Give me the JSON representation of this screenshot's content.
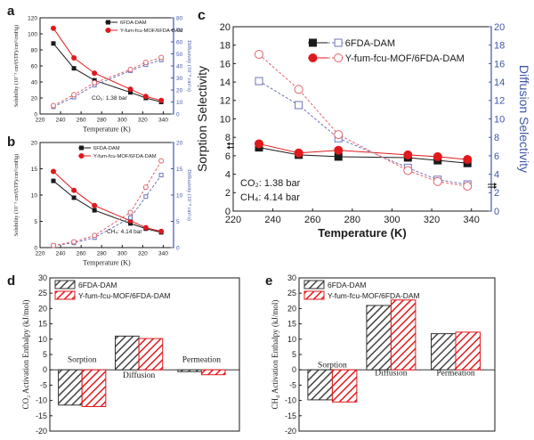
{
  "chart_data": [
    {
      "panel_label": "a",
      "type": "line",
      "xlabel": "Temperature (K)",
      "ylabel": "Solubility (10⁻³ cm³(STP)/cm³/cmHg)",
      "y2label": "Diffusivity (10⁻⁸ cm²/s)",
      "xlim": [
        220,
        350
      ],
      "ylim": [
        0,
        120
      ],
      "y2lim": [
        0,
        80
      ],
      "xticks": [
        220,
        240,
        260,
        280,
        300,
        320,
        340
      ],
      "yticks": [
        0,
        20,
        40,
        60,
        80,
        100,
        120
      ],
      "y2ticks": [
        0,
        10,
        20,
        30,
        40,
        50,
        60,
        70,
        80
      ],
      "annotation": "CO₂: 1.38 bar",
      "series": [
        {
          "name": "6FDA-DAM",
          "axis": "left",
          "x": [
            233,
            253,
            273,
            308,
            323,
            338
          ],
          "values": [
            88,
            57,
            42,
            27,
            20,
            15
          ]
        },
        {
          "name": "Y-fum-fcu-MOF/6FDA-DAM",
          "axis": "left",
          "x": [
            233,
            253,
            273,
            308,
            323,
            338
          ],
          "values": [
            107,
            70,
            51,
            31,
            22,
            17
          ]
        },
        {
          "name": "",
          "axis": "right",
          "x": [
            233,
            253,
            273,
            308,
            323,
            338
          ],
          "values": [
            6,
            14,
            24,
            36,
            41,
            45
          ]
        },
        {
          "name": "",
          "axis": "right",
          "x": [
            233,
            253,
            273,
            308,
            323,
            338
          ],
          "values": [
            7,
            16,
            26,
            37,
            43,
            47
          ]
        }
      ]
    },
    {
      "panel_label": "b",
      "type": "line",
      "xlabel": "Temperature (K)",
      "ylabel": "Solubility (10⁻³ cm³(STP)/cm³/cmHg)",
      "y2label": "Diffusivity (10⁻⁸ cm²/s)",
      "xlim": [
        220,
        350
      ],
      "ylim": [
        0,
        20
      ],
      "y2lim": [
        0,
        20
      ],
      "xticks": [
        220,
        240,
        260,
        280,
        300,
        320,
        340
      ],
      "yticks": [
        0,
        5,
        10,
        15,
        20
      ],
      "y2ticks": [
        0,
        5,
        10,
        15,
        20
      ],
      "annotation": "CH₄: 4.14 bar",
      "series": [
        {
          "name": "6FDA-DAM",
          "axis": "left",
          "x": [
            233,
            253,
            273,
            308,
            323,
            338
          ],
          "values": [
            12.7,
            9.5,
            7.1,
            4.6,
            3.6,
            2.9
          ]
        },
        {
          "name": "Y-fum-fcu-MOF/6FDA-DAM",
          "axis": "left",
          "x": [
            233,
            253,
            273,
            308,
            323,
            338
          ],
          "values": [
            14.5,
            10.9,
            8.0,
            5.1,
            3.8,
            3.1
          ]
        },
        {
          "name": "",
          "axis": "right",
          "x": [
            233,
            253,
            273,
            308,
            323,
            338
          ],
          "values": [
            0.4,
            0.9,
            1.9,
            5.7,
            9.7,
            13.8
          ]
        },
        {
          "name": "",
          "axis": "right",
          "x": [
            233,
            253,
            273,
            308,
            323,
            338
          ],
          "values": [
            0.4,
            1.1,
            2.3,
            6.7,
            11.5,
            16.5
          ]
        }
      ]
    },
    {
      "panel_label": "c",
      "type": "line",
      "xlabel": "Temperature (K)",
      "ylabel": "Sorption Selectivity",
      "y2label": "Diffusion Selectivity",
      "xlim": [
        220,
        350
      ],
      "ylim": [
        0,
        20
      ],
      "y2lim": [
        0,
        20
      ],
      "xticks": [
        220,
        240,
        260,
        280,
        300,
        320,
        340
      ],
      "yticks": [
        0,
        2,
        4,
        6,
        8,
        10,
        12,
        14,
        16,
        18,
        20
      ],
      "y2ticks": [
        0,
        2,
        4,
        6,
        8,
        10,
        12,
        14,
        16,
        18,
        20
      ],
      "annotation_lines": [
        "CO₂: 1.38 bar",
        "CH₄: 4.14 bar"
      ],
      "legend": "top-right",
      "series": [
        {
          "name": "6FDA-DAM",
          "axis": "left",
          "x": [
            233,
            253,
            273,
            308,
            323,
            338
          ],
          "values": [
            6.9,
            6.1,
            5.9,
            5.8,
            5.5,
            5.2
          ]
        },
        {
          "name": "Y-fum-fcu-MOF/6FDA-DAM",
          "axis": "left",
          "x": [
            233,
            253,
            273,
            308,
            323,
            338
          ],
          "values": [
            7.3,
            6.3,
            6.6,
            6.1,
            5.9,
            5.6
          ]
        },
        {
          "name": "6FDA-DAM",
          "axis": "right",
          "x": [
            233,
            253,
            273,
            308,
            323,
            338
          ],
          "values": [
            14.1,
            11.5,
            7.9,
            4.7,
            3.4,
            2.9
          ]
        },
        {
          "name": "Y-fum-fcu-MOF/6FDA-DAM",
          "axis": "right",
          "x": [
            233,
            253,
            273,
            308,
            323,
            338
          ],
          "values": [
            17.0,
            13.2,
            8.3,
            4.4,
            3.2,
            2.7
          ]
        }
      ]
    },
    {
      "panel_label": "d",
      "type": "bar",
      "ylabel": "CO₂ Activation Enthalpy (kJ/mol)",
      "ylim": [
        -20,
        30
      ],
      "yticks": [
        -20,
        -15,
        -10,
        -5,
        0,
        5,
        10,
        15,
        20,
        25,
        30
      ],
      "categories": [
        "Sorption",
        "Diffusion",
        "Permeation"
      ],
      "series": [
        {
          "name": "6FDA-DAM",
          "values": [
            -11.5,
            11.0,
            -0.6
          ]
        },
        {
          "name": "Y-fum-fcu-MOF/6FDA-DAM",
          "values": [
            -12.0,
            10.2,
            -1.6
          ]
        }
      ]
    },
    {
      "panel_label": "e",
      "type": "bar",
      "ylabel": "CH₄ Activation Enthalpy (kJ/mol)",
      "ylim": [
        -20,
        30
      ],
      "yticks": [
        -20,
        -15,
        -10,
        -5,
        0,
        5,
        10,
        15,
        20,
        25,
        30
      ],
      "categories": [
        "Sorption",
        "Diffusion",
        "Permeation"
      ],
      "series": [
        {
          "name": "6FDA-DAM",
          "values": [
            -9.8,
            21.0,
            11.8
          ]
        },
        {
          "name": "Y-fum-fcu-MOF/6FDA-DAM",
          "values": [
            -10.5,
            22.8,
            12.3
          ]
        }
      ]
    }
  ],
  "colors": {
    "dam": "#1a1a1a",
    "mof": "#e0191c",
    "blue_axis": "#3f57a8",
    "dash_dam": "#6d75b8",
    "dash_mof": "#e2636a"
  }
}
